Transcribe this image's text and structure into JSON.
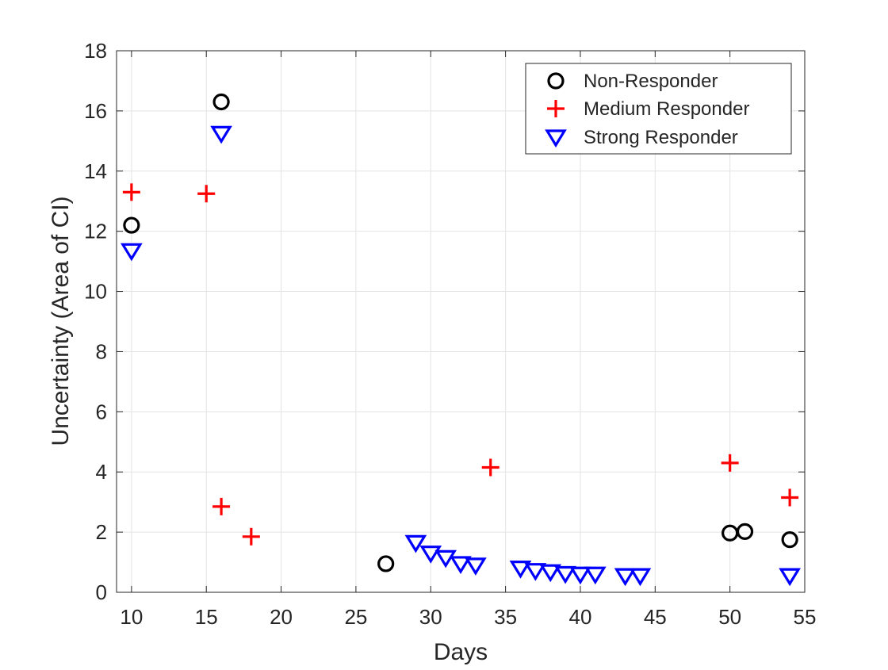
{
  "chart_data": {
    "type": "scatter",
    "title": "",
    "xlabel": "Days",
    "ylabel": "Uncertainty (Area of CI)",
    "xlim": [
      9,
      55
    ],
    "ylim": [
      0,
      18
    ],
    "xticks": [
      10,
      15,
      20,
      25,
      30,
      35,
      40,
      45,
      50,
      55
    ],
    "yticks": [
      0,
      2,
      4,
      6,
      8,
      10,
      12,
      14,
      16,
      18
    ],
    "grid": true,
    "legend_position": "top-right",
    "series": [
      {
        "name": "Non-Responder",
        "marker": "circle",
        "color": "#000000",
        "points": [
          {
            "x": 10,
            "y": 12.2
          },
          {
            "x": 16,
            "y": 16.3
          },
          {
            "x": 27,
            "y": 0.95
          },
          {
            "x": 50,
            "y": 1.97
          },
          {
            "x": 51,
            "y": 2.02
          },
          {
            "x": 54,
            "y": 1.75
          }
        ]
      },
      {
        "name": "Medium Responder",
        "marker": "plus",
        "color": "#ff0000",
        "points": [
          {
            "x": 10,
            "y": 13.3
          },
          {
            "x": 15,
            "y": 13.25
          },
          {
            "x": 16,
            "y": 2.85
          },
          {
            "x": 18,
            "y": 1.85
          },
          {
            "x": 34,
            "y": 4.15
          },
          {
            "x": 50,
            "y": 4.3
          },
          {
            "x": 54,
            "y": 3.15
          }
        ]
      },
      {
        "name": "Strong Responder",
        "marker": "triangle-down",
        "color": "#0000ff",
        "points": [
          {
            "x": 10,
            "y": 11.35
          },
          {
            "x": 16,
            "y": 15.25
          },
          {
            "x": 29,
            "y": 1.65
          },
          {
            "x": 30,
            "y": 1.3
          },
          {
            "x": 31,
            "y": 1.15
          },
          {
            "x": 32,
            "y": 0.95
          },
          {
            "x": 33,
            "y": 0.9
          },
          {
            "x": 36,
            "y": 0.8
          },
          {
            "x": 37,
            "y": 0.72
          },
          {
            "x": 38,
            "y": 0.68
          },
          {
            "x": 39,
            "y": 0.62
          },
          {
            "x": 40,
            "y": 0.6
          },
          {
            "x": 41,
            "y": 0.6
          },
          {
            "x": 43,
            "y": 0.55
          },
          {
            "x": 44,
            "y": 0.55
          },
          {
            "x": 54,
            "y": 0.55
          }
        ]
      }
    ]
  }
}
